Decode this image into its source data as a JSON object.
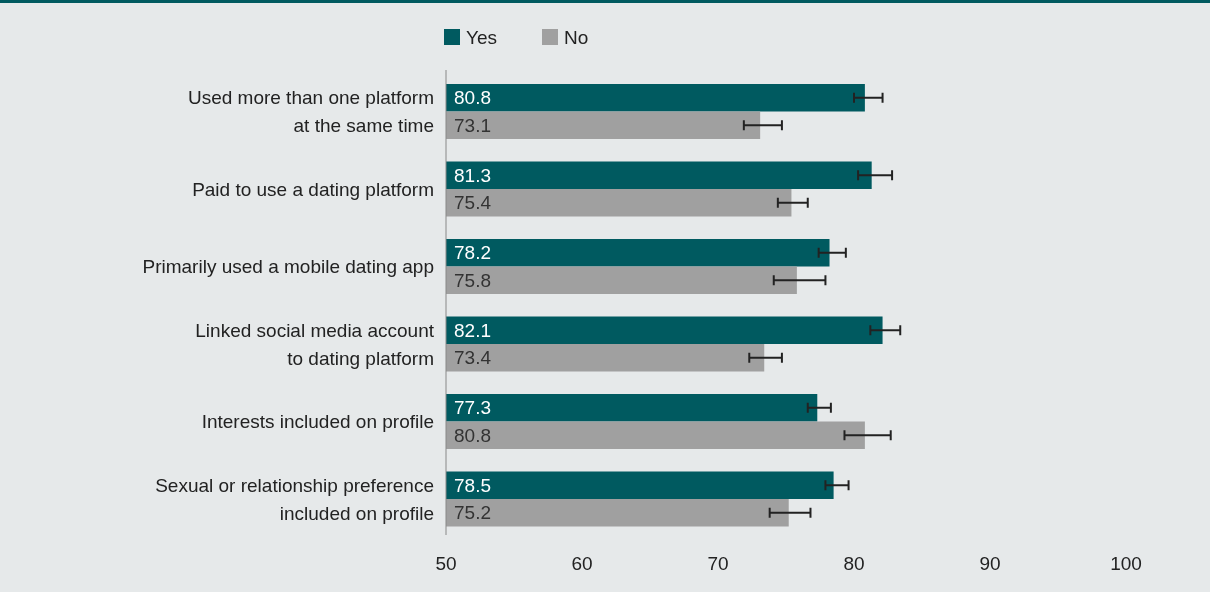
{
  "chart_data": {
    "type": "bar",
    "orientation": "horizontal",
    "categories": [
      "Used more than one platform\nat the same time",
      "Paid to use a dating platform",
      "Primarily used a mobile dating app",
      "Linked social media account\nto dating platform",
      "Interests included on profile",
      "Sexual or relationship preference\nincluded on profile"
    ],
    "series": [
      {
        "name": "Yes",
        "color": "#005a60",
        "values": [
          80.8,
          81.3,
          78.2,
          82.1,
          77.3,
          78.5
        ],
        "errors": [
          [
            80.0,
            82.1
          ],
          [
            80.3,
            82.8
          ],
          [
            77.4,
            79.4
          ],
          [
            81.2,
            83.4
          ],
          [
            76.6,
            78.3
          ],
          [
            77.9,
            79.6
          ]
        ]
      },
      {
        "name": "No",
        "color": "#a0a0a0",
        "values": [
          73.1,
          75.4,
          75.8,
          73.4,
          80.8,
          75.2
        ],
        "errors": [
          [
            71.9,
            74.7
          ],
          [
            74.4,
            76.6
          ],
          [
            74.1,
            77.9
          ],
          [
            72.3,
            74.7
          ],
          [
            79.3,
            82.7
          ],
          [
            73.8,
            76.8
          ]
        ]
      }
    ],
    "xlim": [
      50,
      100
    ],
    "xticks": [
      50,
      60,
      70,
      80,
      90,
      100
    ],
    "data_labels": true,
    "legend": "top",
    "grid": false
  }
}
